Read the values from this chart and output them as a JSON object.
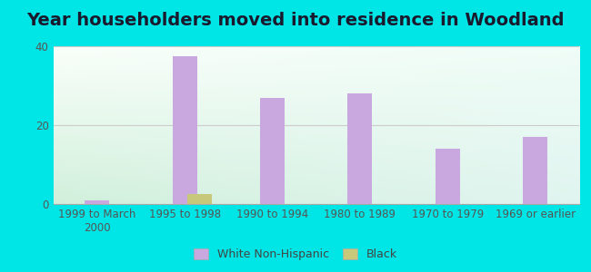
{
  "title": "Year householders moved into residence in Woodland",
  "categories": [
    "1999 to March\n2000",
    "1995 to 1998",
    "1990 to 1994",
    "1980 to 1989",
    "1970 to 1979",
    "1969 or earlier"
  ],
  "white_values": [
    1.0,
    37.5,
    27.0,
    28.0,
    14.0,
    17.0
  ],
  "black_values": [
    0.0,
    2.5,
    0.0,
    0.0,
    0.0,
    0.0
  ],
  "white_color": "#c9a8e0",
  "black_color": "#c8c87a",
  "ylim": [
    0,
    40
  ],
  "yticks": [
    0,
    20,
    40
  ],
  "bar_width": 0.28,
  "background_outer": "#00e5e5",
  "background_inner_topleft": "#d8f0d8",
  "background_inner_topright": "#e8f8f8",
  "background_inner_bottom": "#e0f4e8",
  "grid_color": "#dddddd",
  "title_fontsize": 14,
  "tick_fontsize": 8.5,
  "legend_labels": [
    "White Non-Hispanic",
    "Black"
  ],
  "legend_marker_color_white": "#c9a8e0",
  "legend_marker_color_black": "#c8c87a"
}
